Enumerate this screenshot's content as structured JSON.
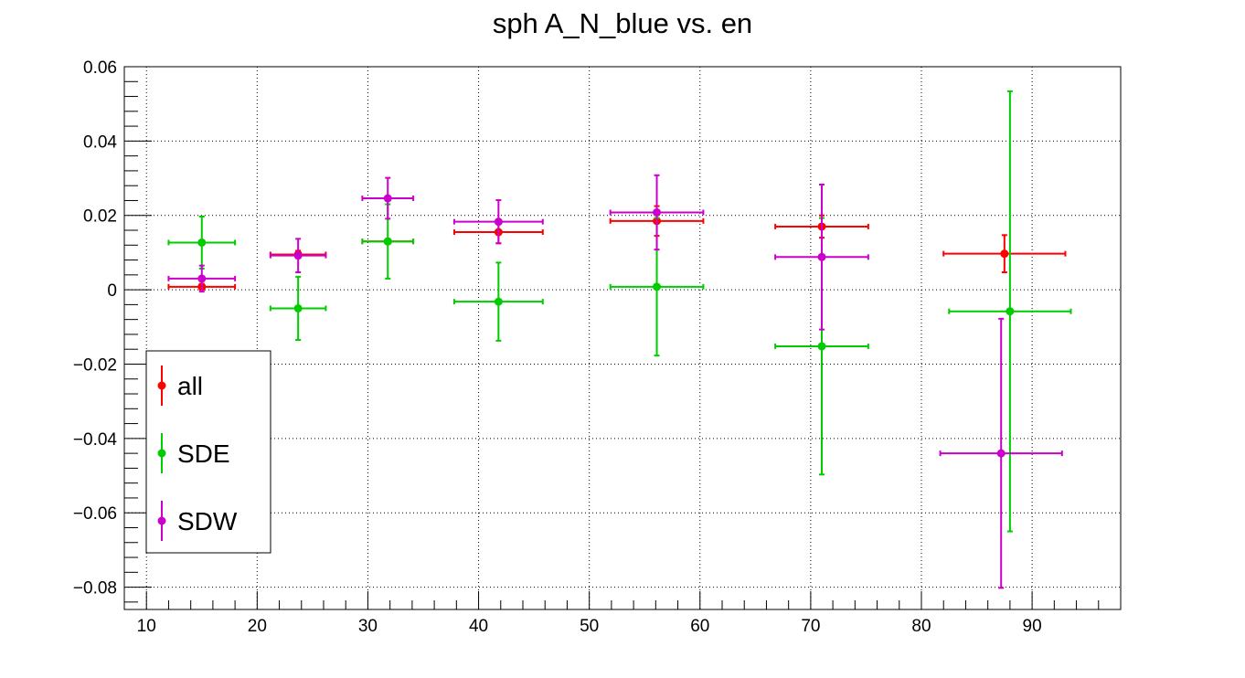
{
  "chart_data": {
    "type": "scatter",
    "title": "sph A_N_blue vs. en",
    "xlabel": "",
    "ylabel": "",
    "xlim": [
      8,
      98
    ],
    "ylim": [
      -0.086,
      0.06
    ],
    "grid": true,
    "legend_placement": "bottom-left",
    "x_ticks": [
      10,
      20,
      30,
      40,
      50,
      60,
      70,
      80,
      90
    ],
    "x_tick_labels": [
      "10",
      "20",
      "30",
      "40",
      "50",
      "60",
      "70",
      "80",
      "90"
    ],
    "y_ticks": [
      0.06,
      0.04,
      0.02,
      0,
      -0.02,
      -0.04,
      -0.06,
      -0.08
    ],
    "y_tick_labels": [
      "0.06",
      "0.04",
      "0.02",
      "0",
      "−0.02",
      "−0.04",
      "−0.06",
      "−0.08"
    ],
    "series": [
      {
        "name": "all",
        "color": "#ff0000",
        "points": [
          {
            "x": 15.0,
            "y": 0.0008,
            "xerr": 3.0,
            "yerr": 0.0008
          },
          {
            "x": 23.7,
            "y": 0.0095,
            "xerr": 2.5,
            "yerr": 0.001
          },
          {
            "x": 31.8,
            "y": 0.013,
            "xerr": 2.3,
            "yerr": 0.0006
          },
          {
            "x": 41.8,
            "y": 0.0155,
            "xerr": 4.0,
            "yerr": 0.003
          },
          {
            "x": 56.1,
            "y": 0.0185,
            "xerr": 4.2,
            "yerr": 0.004
          },
          {
            "x": 71.0,
            "y": 0.017,
            "xerr": 4.2,
            "yerr": 0.003
          },
          {
            "x": 87.5,
            "y": 0.0097,
            "xerr": 5.5,
            "yerr": 0.005
          }
        ]
      },
      {
        "name": "SDE",
        "color": "#00cc00",
        "points": [
          {
            "x": 15.0,
            "y": 0.0127,
            "xerr": 3.0,
            "yerr": 0.007
          },
          {
            "x": 23.7,
            "y": -0.005,
            "xerr": 2.5,
            "yerr": 0.0085
          },
          {
            "x": 31.8,
            "y": 0.013,
            "xerr": 2.3,
            "yerr": 0.01
          },
          {
            "x": 41.8,
            "y": -0.0032,
            "xerr": 4.0,
            "yerr": 0.0105
          },
          {
            "x": 56.1,
            "y": 0.0008,
            "xerr": 4.2,
            "yerr": 0.0185
          },
          {
            "x": 71.0,
            "y": -0.0152,
            "xerr": 4.2,
            "yerr": 0.0345
          },
          {
            "x": 88.0,
            "y": -0.0058,
            "xerr": 5.5,
            "yerr": 0.0592
          }
        ]
      },
      {
        "name": "SDW",
        "color": "#cc00cc",
        "points": [
          {
            "x": 15.0,
            "y": 0.003,
            "xerr": 3.0,
            "yerr": 0.0035
          },
          {
            "x": 23.7,
            "y": 0.0092,
            "xerr": 2.5,
            "yerr": 0.0045
          },
          {
            "x": 31.8,
            "y": 0.0246,
            "xerr": 2.3,
            "yerr": 0.0055
          },
          {
            "x": 41.8,
            "y": 0.0183,
            "xerr": 4.0,
            "yerr": 0.0058
          },
          {
            "x": 56.1,
            "y": 0.0208,
            "xerr": 4.2,
            "yerr": 0.01
          },
          {
            "x": 71.0,
            "y": 0.0088,
            "xerr": 4.2,
            "yerr": 0.0195
          },
          {
            "x": 87.2,
            "y": -0.044,
            "xerr": 5.5,
            "yerr": 0.0362
          }
        ]
      }
    ]
  }
}
